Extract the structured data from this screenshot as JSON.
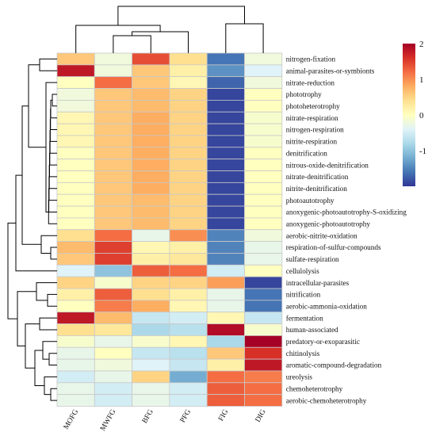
{
  "chart_data": {
    "type": "heatmap",
    "title": "",
    "columns": [
      "MOFG",
      "MWFG",
      "BFG",
      "PFG",
      "FIG",
      "DIG"
    ],
    "rows": [
      "nitrogen-fixation",
      "animal-parasites-or-symbionts",
      "nitrate-reduction",
      "phototrophy",
      "photoheterotrophy",
      "nitrate-respiration",
      "nitrogen-respiration",
      "nitrite-respiration",
      "denitrification",
      "nitrous-oxide-denitrification",
      "nitrate-denitrification",
      "nitrite-denitrification",
      "photoautotrophy",
      "anoxygenic-photoautotrophy-S-oxidizing",
      "anoxygenic-photoautotrophy",
      "aerobic-nitrite-oxidation",
      "respiration-of-sulfur-compounds",
      "sulfate-respiration",
      "cellulolysis",
      "intracellular-parasites",
      "nitrification",
      "aerobic-ammonia-oxidation",
      "fermentation",
      "human-associated",
      "predatory-or-exoparasitic",
      "chitinolysis",
      "aromatic-compound-degradation",
      "ureolysis",
      "chemoheterotrophy",
      "aerobic-chemoheterotrophy"
    ],
    "values": [
      [
        0.6,
        -0.2,
        1.4,
        0.4,
        -1.6,
        -0.2
      ],
      [
        1.8,
        -0.2,
        0.6,
        0.2,
        -1.4,
        -0.4
      ],
      [
        0.0,
        1.2,
        0.6,
        0.1,
        -1.7,
        -0.2
      ],
      [
        -0.2,
        0.6,
        0.7,
        0.5,
        -1.9,
        0.0
      ],
      [
        -0.2,
        0.6,
        0.7,
        0.5,
        -1.9,
        0.0
      ],
      [
        0.1,
        0.6,
        0.8,
        0.5,
        -1.9,
        -0.1
      ],
      [
        0.1,
        0.6,
        0.8,
        0.5,
        -1.9,
        -0.1
      ],
      [
        0.1,
        0.6,
        0.8,
        0.5,
        -1.9,
        -0.1
      ],
      [
        0.0,
        0.6,
        0.8,
        0.5,
        -1.9,
        0.0
      ],
      [
        0.0,
        0.6,
        0.8,
        0.5,
        -1.9,
        0.0
      ],
      [
        0.0,
        0.6,
        0.8,
        0.5,
        -1.9,
        0.0
      ],
      [
        0.0,
        0.6,
        0.8,
        0.5,
        -1.9,
        0.0
      ],
      [
        0.0,
        0.6,
        0.7,
        0.5,
        -1.9,
        0.0
      ],
      [
        0.0,
        0.6,
        0.7,
        0.5,
        -1.9,
        0.0
      ],
      [
        0.0,
        0.6,
        0.7,
        0.5,
        -1.9,
        0.0
      ],
      [
        0.4,
        1.2,
        -0.3,
        1.0,
        -1.5,
        -0.2
      ],
      [
        0.7,
        1.5,
        0.1,
        0.2,
        -1.5,
        -0.3
      ],
      [
        0.6,
        1.5,
        0.2,
        0.3,
        -1.5,
        -0.3
      ],
      [
        -0.4,
        -1.0,
        1.3,
        1.2,
        -0.5,
        0.0
      ],
      [
        0.5,
        -0.1,
        0.5,
        0.5,
        0.9,
        -1.9
      ],
      [
        0.2,
        1.3,
        0.4,
        0.2,
        -0.3,
        -1.6
      ],
      [
        0.0,
        1.1,
        0.8,
        0.1,
        -0.3,
        -1.6
      ],
      [
        1.8,
        0.7,
        -0.6,
        -0.5,
        0.1,
        -0.6
      ],
      [
        0.4,
        0.3,
        -0.8,
        -0.7,
        1.9,
        -0.1
      ],
      [
        -0.1,
        -0.3,
        -0.1,
        0.1,
        -0.8,
        2.0
      ],
      [
        -0.3,
        0.0,
        -0.6,
        -0.7,
        0.6,
        1.6
      ],
      [
        -0.3,
        -0.2,
        -0.4,
        -0.6,
        0.2,
        1.8
      ],
      [
        -0.5,
        -0.3,
        0.5,
        -1.2,
        1.2,
        1.1
      ],
      [
        -0.3,
        -0.5,
        -0.3,
        -0.5,
        1.3,
        1.2
      ],
      [
        -0.3,
        -0.5,
        -0.3,
        -0.5,
        1.3,
        1.2
      ]
    ],
    "color_scale": {
      "min": -2,
      "max": 2,
      "ticks": [
        "2",
        "1",
        "0",
        "-1"
      ],
      "tick_values": [
        2,
        1,
        0,
        -1
      ],
      "colors": [
        "#313695",
        "#4575b4",
        "#74add1",
        "#abd9e9",
        "#e0f3f8",
        "#ffffbf",
        "#fee090",
        "#fdae61",
        "#f46d43",
        "#d73027",
        "#a50026"
      ]
    },
    "legend_position": "top-right"
  }
}
